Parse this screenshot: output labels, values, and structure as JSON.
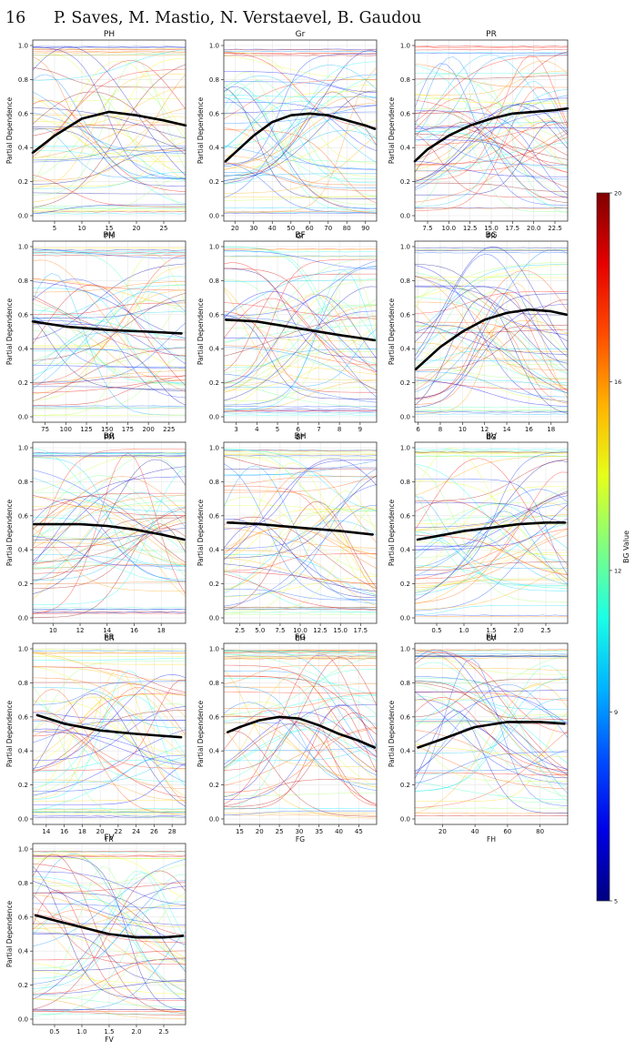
{
  "header": {
    "page_number": "16",
    "authors": "P. Saves, M. Mastio, N. Verstaevel, B. Gaudou"
  },
  "figure": {
    "ylabel": "Partial Dependence",
    "colorbar": {
      "label": "BG Value",
      "ticks": [
        "20",
        "16",
        "12",
        "9",
        "5"
      ],
      "tick_values": [
        20,
        16,
        12,
        9,
        5
      ],
      "range": [
        5,
        20
      ],
      "colormap": "jet"
    },
    "ice_curve_count": 60
  },
  "chart_data": [
    {
      "type": "line",
      "title": "PH",
      "xlabel": "PH",
      "ylabel": "Partial Dependence",
      "xlim": [
        1,
        29
      ],
      "ylim": [
        0,
        1
      ],
      "xticks": [
        5,
        10,
        15,
        20,
        25
      ],
      "yticks": [
        0.0,
        0.2,
        0.4,
        0.6,
        0.8,
        1.0
      ],
      "series": [
        {
          "x": [
            1,
            5,
            10,
            15,
            20,
            25,
            29
          ],
          "values": [
            0.37,
            0.47,
            0.57,
            0.61,
            0.59,
            0.56,
            0.53
          ]
        }
      ]
    },
    {
      "type": "line",
      "title": "Gr",
      "xlabel": "Gr",
      "ylabel": "Partial Dependence",
      "xlim": [
        14,
        96
      ],
      "ylim": [
        0,
        1
      ],
      "xticks": [
        20,
        30,
        40,
        50,
        60,
        70,
        80,
        90
      ],
      "yticks": [
        0.0,
        0.2,
        0.4,
        0.6,
        0.8,
        1.0
      ],
      "series": [
        {
          "x": [
            15,
            20,
            30,
            40,
            50,
            60,
            70,
            80,
            90,
            95
          ],
          "values": [
            0.32,
            0.37,
            0.47,
            0.55,
            0.59,
            0.6,
            0.59,
            0.56,
            0.53,
            0.51
          ]
        }
      ]
    },
    {
      "type": "line",
      "title": "PR",
      "xlabel": "PR",
      "ylabel": "Partial Dependence",
      "xlim": [
        6,
        24
      ],
      "ylim": [
        0,
        1
      ],
      "xticks": [
        7.5,
        10.0,
        12.5,
        15.0,
        17.5,
        20.0,
        22.5
      ],
      "yticks": [
        0.0,
        0.2,
        0.4,
        0.6,
        0.8,
        1.0
      ],
      "series": [
        {
          "x": [
            6,
            7.5,
            10,
            12.5,
            15,
            17.5,
            20,
            22.5,
            24
          ],
          "values": [
            0.32,
            0.39,
            0.47,
            0.53,
            0.57,
            0.6,
            0.61,
            0.62,
            0.63
          ]
        }
      ]
    },
    {
      "type": "line",
      "title": "PM",
      "xlabel": "PM",
      "ylabel": "Partial Dependence",
      "xlim": [
        60,
        245
      ],
      "ylim": [
        0,
        1
      ],
      "xticks": [
        75,
        100,
        125,
        150,
        175,
        200,
        225
      ],
      "yticks": [
        0.0,
        0.2,
        0.4,
        0.6,
        0.8,
        1.0
      ],
      "series": [
        {
          "x": [
            60,
            100,
            150,
            200,
            240
          ],
          "values": [
            0.56,
            0.53,
            0.51,
            0.5,
            0.49
          ]
        }
      ]
    },
    {
      "type": "line",
      "title": "BF",
      "xlabel": "BF",
      "ylabel": "Partial Dependence",
      "xlim": [
        2.4,
        9.8
      ],
      "ylim": [
        0,
        1
      ],
      "xticks": [
        3,
        4,
        5,
        6,
        7,
        8,
        9
      ],
      "yticks": [
        0.0,
        0.2,
        0.4,
        0.6,
        0.8,
        1.0
      ],
      "series": [
        {
          "x": [
            2.5,
            4,
            6,
            8,
            9.7
          ],
          "values": [
            0.57,
            0.56,
            0.52,
            0.48,
            0.45
          ]
        }
      ]
    },
    {
      "type": "line",
      "title": "BG",
      "xlabel": "BG",
      "ylabel": "Partial Dependence",
      "xlim": [
        5.7,
        19.5
      ],
      "ylim": [
        0,
        1
      ],
      "xticks": [
        6,
        8,
        10,
        12,
        14,
        16,
        18
      ],
      "yticks": [
        0.0,
        0.2,
        0.4,
        0.6,
        0.8,
        1.0
      ],
      "series": [
        {
          "x": [
            5.8,
            8,
            10,
            12,
            14,
            16,
            18,
            19.4
          ],
          "values": [
            0.28,
            0.41,
            0.5,
            0.57,
            0.61,
            0.63,
            0.62,
            0.6
          ]
        }
      ]
    },
    {
      "type": "line",
      "title": "BR",
      "xlabel": "BR",
      "ylabel": "Partial Dependence",
      "xlim": [
        8.5,
        19.8
      ],
      "ylim": [
        0,
        1
      ],
      "xticks": [
        10,
        12,
        14,
        16,
        18
      ],
      "yticks": [
        0.0,
        0.2,
        0.4,
        0.6,
        0.8,
        1.0
      ],
      "series": [
        {
          "x": [
            8.6,
            12,
            14,
            16,
            18,
            19.7
          ],
          "values": [
            0.55,
            0.55,
            0.54,
            0.52,
            0.49,
            0.46
          ]
        }
      ]
    },
    {
      "type": "line",
      "title": "BH",
      "xlabel": "BH",
      "ylabel": "Partial Dependence",
      "xlim": [
        0.5,
        19.5
      ],
      "ylim": [
        0,
        1
      ],
      "xticks": [
        2.5,
        5.0,
        7.5,
        10.0,
        12.5,
        15.0,
        17.5
      ],
      "yticks": [
        0.0,
        0.2,
        0.4,
        0.6,
        0.8,
        1.0
      ],
      "series": [
        {
          "x": [
            1,
            5,
            10,
            15,
            19
          ],
          "values": [
            0.56,
            0.55,
            0.53,
            0.51,
            0.49
          ]
        }
      ]
    },
    {
      "type": "line",
      "title": "BV",
      "xlabel": "BV",
      "ylabel": "Partial Dependence",
      "xlim": [
        0.1,
        2.9
      ],
      "ylim": [
        0,
        1
      ],
      "xticks": [
        0.5,
        1.0,
        1.5,
        2.0,
        2.5
      ],
      "yticks": [
        0.0,
        0.2,
        0.4,
        0.6,
        0.8,
        1.0
      ],
      "series": [
        {
          "x": [
            0.15,
            0.5,
            1.0,
            1.5,
            2.0,
            2.5,
            2.85
          ],
          "values": [
            0.46,
            0.48,
            0.51,
            0.53,
            0.55,
            0.56,
            0.56
          ]
        }
      ]
    },
    {
      "type": "line",
      "title": "FR",
      "xlabel": "FR",
      "ylabel": "Partial Dependence",
      "xlim": [
        12.5,
        29.5
      ],
      "ylim": [
        0,
        1
      ],
      "xticks": [
        14,
        16,
        18,
        20,
        22,
        24,
        26,
        28
      ],
      "yticks": [
        0.0,
        0.2,
        0.4,
        0.6,
        0.8,
        1.0
      ],
      "series": [
        {
          "x": [
            13,
            16,
            20,
            24,
            29
          ],
          "values": [
            0.61,
            0.56,
            0.52,
            0.5,
            0.48
          ]
        }
      ]
    },
    {
      "type": "line",
      "title": "FG",
      "xlabel": "FG",
      "ylabel": "Partial Dependence",
      "xlim": [
        11,
        49.5
      ],
      "ylim": [
        0,
        1
      ],
      "xticks": [
        15,
        20,
        25,
        30,
        35,
        40,
        45
      ],
      "yticks": [
        0.0,
        0.2,
        0.4,
        0.6,
        0.8,
        1.0
      ],
      "series": [
        {
          "x": [
            12,
            15,
            20,
            25,
            30,
            35,
            40,
            45,
            49
          ],
          "values": [
            0.51,
            0.54,
            0.58,
            0.6,
            0.59,
            0.55,
            0.5,
            0.46,
            0.42
          ]
        }
      ]
    },
    {
      "type": "line",
      "title": "FH",
      "xlabel": "FH",
      "ylabel": "Partial Dependence",
      "xlim": [
        3,
        97
      ],
      "ylim": [
        0,
        1
      ],
      "xticks": [
        20,
        40,
        60,
        80
      ],
      "yticks": [
        0.0,
        0.2,
        0.4,
        0.6,
        0.8,
        1.0
      ],
      "series": [
        {
          "x": [
            5,
            20,
            40,
            60,
            80,
            95
          ],
          "values": [
            0.42,
            0.47,
            0.54,
            0.57,
            0.57,
            0.56
          ]
        }
      ]
    },
    {
      "type": "line",
      "title": "FV",
      "xlabel": "FV",
      "ylabel": "Partial Dependence",
      "xlim": [
        0.1,
        2.9
      ],
      "ylim": [
        0,
        1
      ],
      "xticks": [
        0.5,
        1.0,
        1.5,
        2.0,
        2.5
      ],
      "yticks": [
        0.0,
        0.2,
        0.4,
        0.6,
        0.8,
        1.0
      ],
      "series": [
        {
          "x": [
            0.15,
            0.5,
            1.0,
            1.5,
            2.0,
            2.5,
            2.85
          ],
          "values": [
            0.61,
            0.58,
            0.54,
            0.5,
            0.48,
            0.48,
            0.49
          ]
        }
      ]
    }
  ]
}
